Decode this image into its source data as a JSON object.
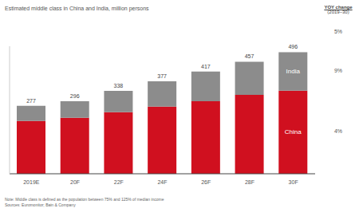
{
  "chart_data": {
    "type": "bar",
    "title": "Estimated middle class in China and India, million persons",
    "categories": [
      "2019E",
      "20F",
      "22F",
      "24F",
      "26F",
      "28F",
      "30F"
    ],
    "series": [
      {
        "name": "China",
        "color": "#d0101f",
        "values": [
          215,
          228,
          251,
          274,
          296,
          322,
          339
        ],
        "yoy_change": {
          "value": 4,
          "label": "4%"
        }
      },
      {
        "name": "India",
        "color": "#8c8c8c",
        "values": [
          62,
          68,
          87,
          103,
          121,
          135,
          157
        ],
        "yoy_change": {
          "value": 9,
          "label": "9%"
        }
      }
    ],
    "totals": [
      277,
      296,
      338,
      377,
      417,
      457,
      496
    ],
    "yoy_change": {
      "title": "YOY change",
      "period": "(2019–30)",
      "total": {
        "value": 5,
        "label": "5%"
      }
    },
    "ylim": [
      0,
      520
    ],
    "stacked": true,
    "tick_labels": "x",
    "notes": [
      "Note: Middle class is defined as the population between 75% and 125% of median income",
      "Sources: Euromonitor; Bain & Company"
    ]
  }
}
